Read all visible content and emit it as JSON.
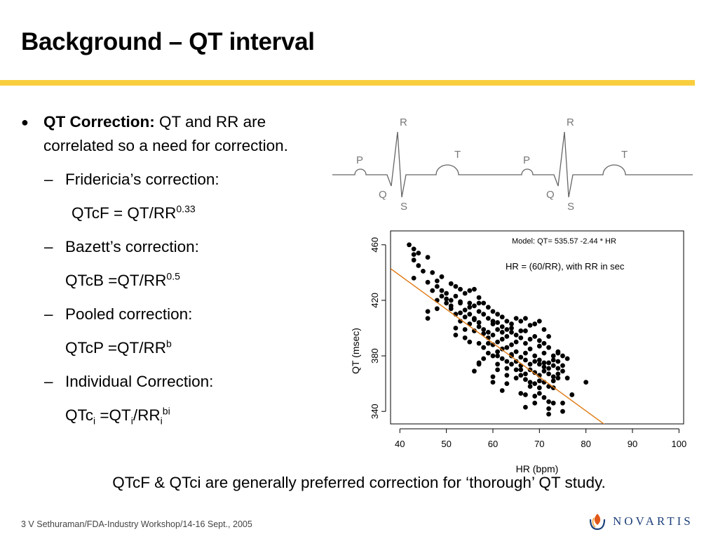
{
  "slide": {
    "title": "Background – QT interval",
    "accent_color": "#f9ce3e"
  },
  "bullets": {
    "main_bold": "QT Correction:",
    "main_text": " QT and RR are correlated so a need for correction.",
    "fridericia_label": "Fridericia’s correction:",
    "fridericia_formula": "QTcF = QT/RR",
    "fridericia_exp": "0.33",
    "bazett_label": "Bazett’s correction:",
    "bazett_formula": "QTcB =QT/RR",
    "bazett_exp": "0.5",
    "pooled_label": "Pooled correction:",
    "pooled_formula": "QTcP =QT/RR",
    "pooled_exp": "b",
    "individual_label": "Individual Correction:",
    "individual_parts": [
      "QTc",
      "i",
      " =QT",
      "i",
      "/RR",
      "i",
      "bi"
    ]
  },
  "ecg": {
    "labels": [
      "P",
      "R",
      "Q",
      "S",
      "T",
      "P",
      "R",
      "Q",
      "S",
      "T"
    ]
  },
  "chart_data": {
    "type": "scatter",
    "xlabel": "HR (bpm)",
    "ylabel": "QT (msec)",
    "xlim": [
      38,
      101
    ],
    "ylim": [
      331,
      470
    ],
    "xticks": [
      40,
      50,
      60,
      70,
      80,
      90,
      100
    ],
    "yticks": [
      340,
      380,
      420,
      460
    ],
    "grid": false,
    "annotations": [
      "Model:   QT= 535.57 -2.44 * HR",
      "HR = (60/RR), with RR in sec"
    ],
    "fit_line": {
      "intercept": 535.57,
      "slope": -2.44,
      "color": "#e07a12"
    },
    "point_color": "#000000",
    "points": [
      [
        42,
        460
      ],
      [
        43,
        457
      ],
      [
        43,
        453
      ],
      [
        44,
        454
      ],
      [
        43,
        449
      ],
      [
        44,
        445
      ],
      [
        46,
        451
      ],
      [
        45,
        441
      ],
      [
        47,
        440
      ],
      [
        43,
        436
      ],
      [
        46,
        433
      ],
      [
        48,
        430
      ],
      [
        49,
        427
      ],
      [
        50,
        425
      ],
      [
        48,
        434
      ],
      [
        49,
        437
      ],
      [
        51,
        432
      ],
      [
        52,
        430
      ],
      [
        53,
        428
      ],
      [
        55,
        427
      ],
      [
        54,
        425
      ],
      [
        56,
        428
      ],
      [
        57,
        422
      ],
      [
        47,
        427
      ],
      [
        49,
        423
      ],
      [
        51,
        420
      ],
      [
        52,
        423
      ],
      [
        50,
        418
      ],
      [
        53,
        418
      ],
      [
        55,
        418
      ],
      [
        56,
        416
      ],
      [
        57,
        418
      ],
      [
        58,
        418
      ],
      [
        54,
        413
      ],
      [
        59,
        415
      ],
      [
        46,
        412
      ],
      [
        48,
        414
      ],
      [
        51,
        414
      ],
      [
        52,
        410
      ],
      [
        54,
        408
      ],
      [
        55,
        410
      ],
      [
        57,
        412
      ],
      [
        58,
        410
      ],
      [
        59,
        407
      ],
      [
        60,
        412
      ],
      [
        61,
        410
      ],
      [
        62,
        408
      ],
      [
        56,
        407
      ],
      [
        53,
        405
      ],
      [
        55,
        403
      ],
      [
        57,
        404
      ],
      [
        60,
        405
      ],
      [
        61,
        404
      ],
      [
        63,
        405
      ],
      [
        64,
        403
      ],
      [
        65,
        407
      ],
      [
        66,
        405
      ],
      [
        67,
        407
      ],
      [
        68,
        402
      ],
      [
        69,
        403
      ],
      [
        70,
        405
      ],
      [
        52,
        400
      ],
      [
        54,
        399
      ],
      [
        56,
        398
      ],
      [
        58,
        399
      ],
      [
        59,
        397
      ],
      [
        61,
        399
      ],
      [
        62,
        397
      ],
      [
        64,
        400
      ],
      [
        66,
        398
      ],
      [
        67,
        398
      ],
      [
        71,
        399
      ],
      [
        59,
        393
      ],
      [
        60,
        395
      ],
      [
        62,
        392
      ],
      [
        63,
        394
      ],
      [
        65,
        395
      ],
      [
        66,
        393
      ],
      [
        68,
        392
      ],
      [
        69,
        394
      ],
      [
        70,
        391
      ],
      [
        72,
        394
      ],
      [
        55,
        390
      ],
      [
        57,
        389
      ],
      [
        58,
        386
      ],
      [
        60,
        388
      ],
      [
        61,
        390
      ],
      [
        63,
        386
      ],
      [
        64,
        388
      ],
      [
        65,
        390
      ],
      [
        67,
        389
      ],
      [
        68,
        385
      ],
      [
        70,
        387
      ],
      [
        71,
        389
      ],
      [
        72,
        386
      ],
      [
        59,
        382
      ],
      [
        60,
        380
      ],
      [
        61,
        383
      ],
      [
        62,
        378
      ],
      [
        64,
        381
      ],
      [
        65,
        383
      ],
      [
        66,
        379
      ],
      [
        67,
        382
      ],
      [
        69,
        380
      ],
      [
        71,
        382
      ],
      [
        73,
        380
      ],
      [
        74,
        382
      ],
      [
        75,
        380
      ],
      [
        76,
        378
      ],
      [
        63,
        376
      ],
      [
        64,
        374
      ],
      [
        65,
        376
      ],
      [
        66,
        373
      ],
      [
        67,
        377
      ],
      [
        68,
        374
      ],
      [
        69,
        376
      ],
      [
        70,
        374
      ],
      [
        71,
        372
      ],
      [
        72,
        375
      ],
      [
        73,
        373
      ],
      [
        74,
        376
      ],
      [
        75,
        373
      ],
      [
        66,
        370
      ],
      [
        67,
        367
      ],
      [
        68,
        370
      ],
      [
        69,
        368
      ],
      [
        70,
        366
      ],
      [
        71,
        369
      ],
      [
        72,
        367
      ],
      [
        73,
        365
      ],
      [
        74,
        371
      ],
      [
        75,
        369
      ],
      [
        58,
        378
      ],
      [
        57,
        374
      ],
      [
        61,
        370
      ],
      [
        63,
        366
      ],
      [
        65,
        364
      ],
      [
        67,
        363
      ],
      [
        68,
        358
      ],
      [
        69,
        360
      ],
      [
        70,
        357
      ],
      [
        71,
        361
      ],
      [
        72,
        358
      ],
      [
        73,
        362
      ],
      [
        76,
        364
      ],
      [
        66,
        353
      ],
      [
        67,
        352
      ],
      [
        69,
        351
      ],
      [
        70,
        353
      ],
      [
        71,
        350
      ],
      [
        72,
        347
      ],
      [
        73,
        346
      ],
      [
        72,
        342
      ],
      [
        72,
        338
      ],
      [
        75,
        346
      ],
      [
        75,
        340
      ],
      [
        80,
        361
      ],
      [
        62,
        355
      ],
      [
        60,
        365
      ],
      [
        56,
        369
      ],
      [
        57,
        375
      ],
      [
        52,
        395
      ],
      [
        54,
        393
      ],
      [
        58,
        396
      ],
      [
        60,
        403
      ],
      [
        62,
        401
      ],
      [
        63,
        399
      ],
      [
        64,
        397
      ],
      [
        46,
        407
      ],
      [
        48,
        420
      ],
      [
        50,
        421
      ],
      [
        51,
        416
      ],
      [
        53,
        411
      ],
      [
        56,
        406
      ],
      [
        61,
        374
      ],
      [
        62,
        385
      ],
      [
        64,
        380
      ],
      [
        65,
        370
      ],
      [
        66,
        366
      ],
      [
        68,
        361
      ],
      [
        70,
        377
      ],
      [
        73,
        357
      ],
      [
        74,
        364
      ],
      [
        77,
        352
      ],
      [
        69,
        346
      ],
      [
        67,
        343
      ],
      [
        70,
        362
      ],
      [
        74,
        367
      ],
      [
        63,
        360
      ],
      [
        60,
        361
      ],
      [
        53,
        419
      ],
      [
        55,
        415
      ],
      [
        57,
        401
      ],
      [
        59,
        389
      ],
      [
        61,
        380
      ],
      [
        63,
        371
      ],
      [
        71,
        375
      ],
      [
        72,
        371
      ],
      [
        73,
        377
      ],
      [
        74,
        383
      ]
    ]
  },
  "conclusion": "QTcF & QTci are generally preferred correction for ‘thorough’ QT study.",
  "footer": "3 V Sethuraman/FDA-Industry Workshop/14-16 Sept., 2005",
  "logo": {
    "text": "NOVARTIS",
    "icon": "novartis-flame-icon",
    "primary_color": "#1c3f7a",
    "secondary_color": "#e0591b"
  }
}
